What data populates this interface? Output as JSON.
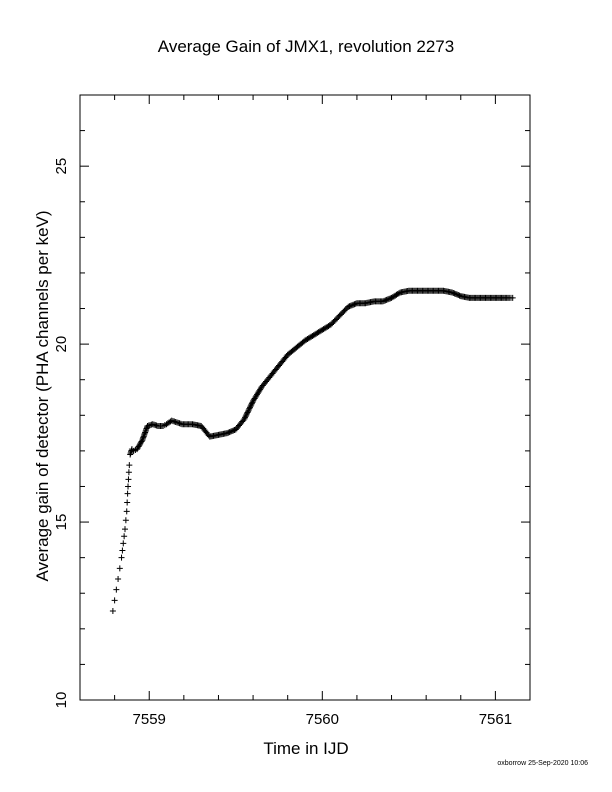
{
  "chart_data": {
    "type": "scatter",
    "title": "Average Gain of JMX1, revolution 2273",
    "xlabel": "Time in IJD",
    "ylabel": "Average gain of detector (PHA channels per keV)",
    "xlim": [
      7558.6,
      7561.2
    ],
    "ylim": [
      10,
      27
    ],
    "x_ticks": [
      7559,
      7560,
      7561
    ],
    "x_tick_labels": [
      "7559",
      "7560",
      "7561"
    ],
    "y_ticks": [
      10,
      15,
      20,
      25
    ],
    "y_tick_labels": [
      "10",
      "15",
      "20",
      "25"
    ],
    "marker": "+",
    "grid": false,
    "series": [
      {
        "marker_color": "#000000",
        "x": [
          7558.79,
          7558.8,
          7558.81,
          7558.82,
          7558.83,
          7558.84,
          7558.85,
          7558.86,
          7558.87,
          7558.875,
          7558.88,
          7558.885,
          7558.89,
          7558.9,
          7558.91,
          7558.93,
          7558.96,
          7558.99,
          7559.02,
          7559.05,
          7559.08,
          7559.1,
          7559.13,
          7559.16,
          7559.19,
          7559.22,
          7559.25,
          7559.3,
          7559.35,
          7559.4,
          7559.45,
          7559.5,
          7559.55,
          7559.6,
          7559.65,
          7559.7,
          7559.75,
          7559.8,
          7559.85,
          7559.9,
          7559.95,
          7560.0,
          7560.05,
          7560.1,
          7560.15,
          7560.2,
          7560.25,
          7560.3,
          7560.35,
          7560.4,
          7560.45,
          7560.5,
          7560.55,
          7560.6,
          7560.65,
          7560.7,
          7560.75,
          7560.8,
          7560.85,
          7560.9,
          7560.95,
          7561.0,
          7561.05,
          7561.08,
          7561.1
        ],
        "y": [
          12.5,
          12.8,
          13.1,
          13.4,
          13.7,
          14.0,
          14.4,
          14.8,
          15.3,
          15.8,
          16.2,
          16.6,
          16.9,
          17.05,
          17.0,
          17.05,
          17.3,
          17.7,
          17.75,
          17.7,
          17.7,
          17.75,
          17.85,
          17.8,
          17.75,
          17.75,
          17.75,
          17.7,
          17.4,
          17.45,
          17.5,
          17.6,
          17.9,
          18.4,
          18.8,
          19.1,
          19.4,
          19.7,
          19.9,
          20.1,
          20.25,
          20.4,
          20.55,
          20.8,
          21.05,
          21.15,
          21.15,
          21.2,
          21.2,
          21.3,
          21.45,
          21.5,
          21.5,
          21.5,
          21.5,
          21.5,
          21.45,
          21.35,
          21.3,
          21.3,
          21.3,
          21.3,
          21.3,
          21.3,
          21.3
        ]
      }
    ]
  },
  "footer": {
    "credit": "oxborrow 25-Sep-2020 10:06"
  }
}
